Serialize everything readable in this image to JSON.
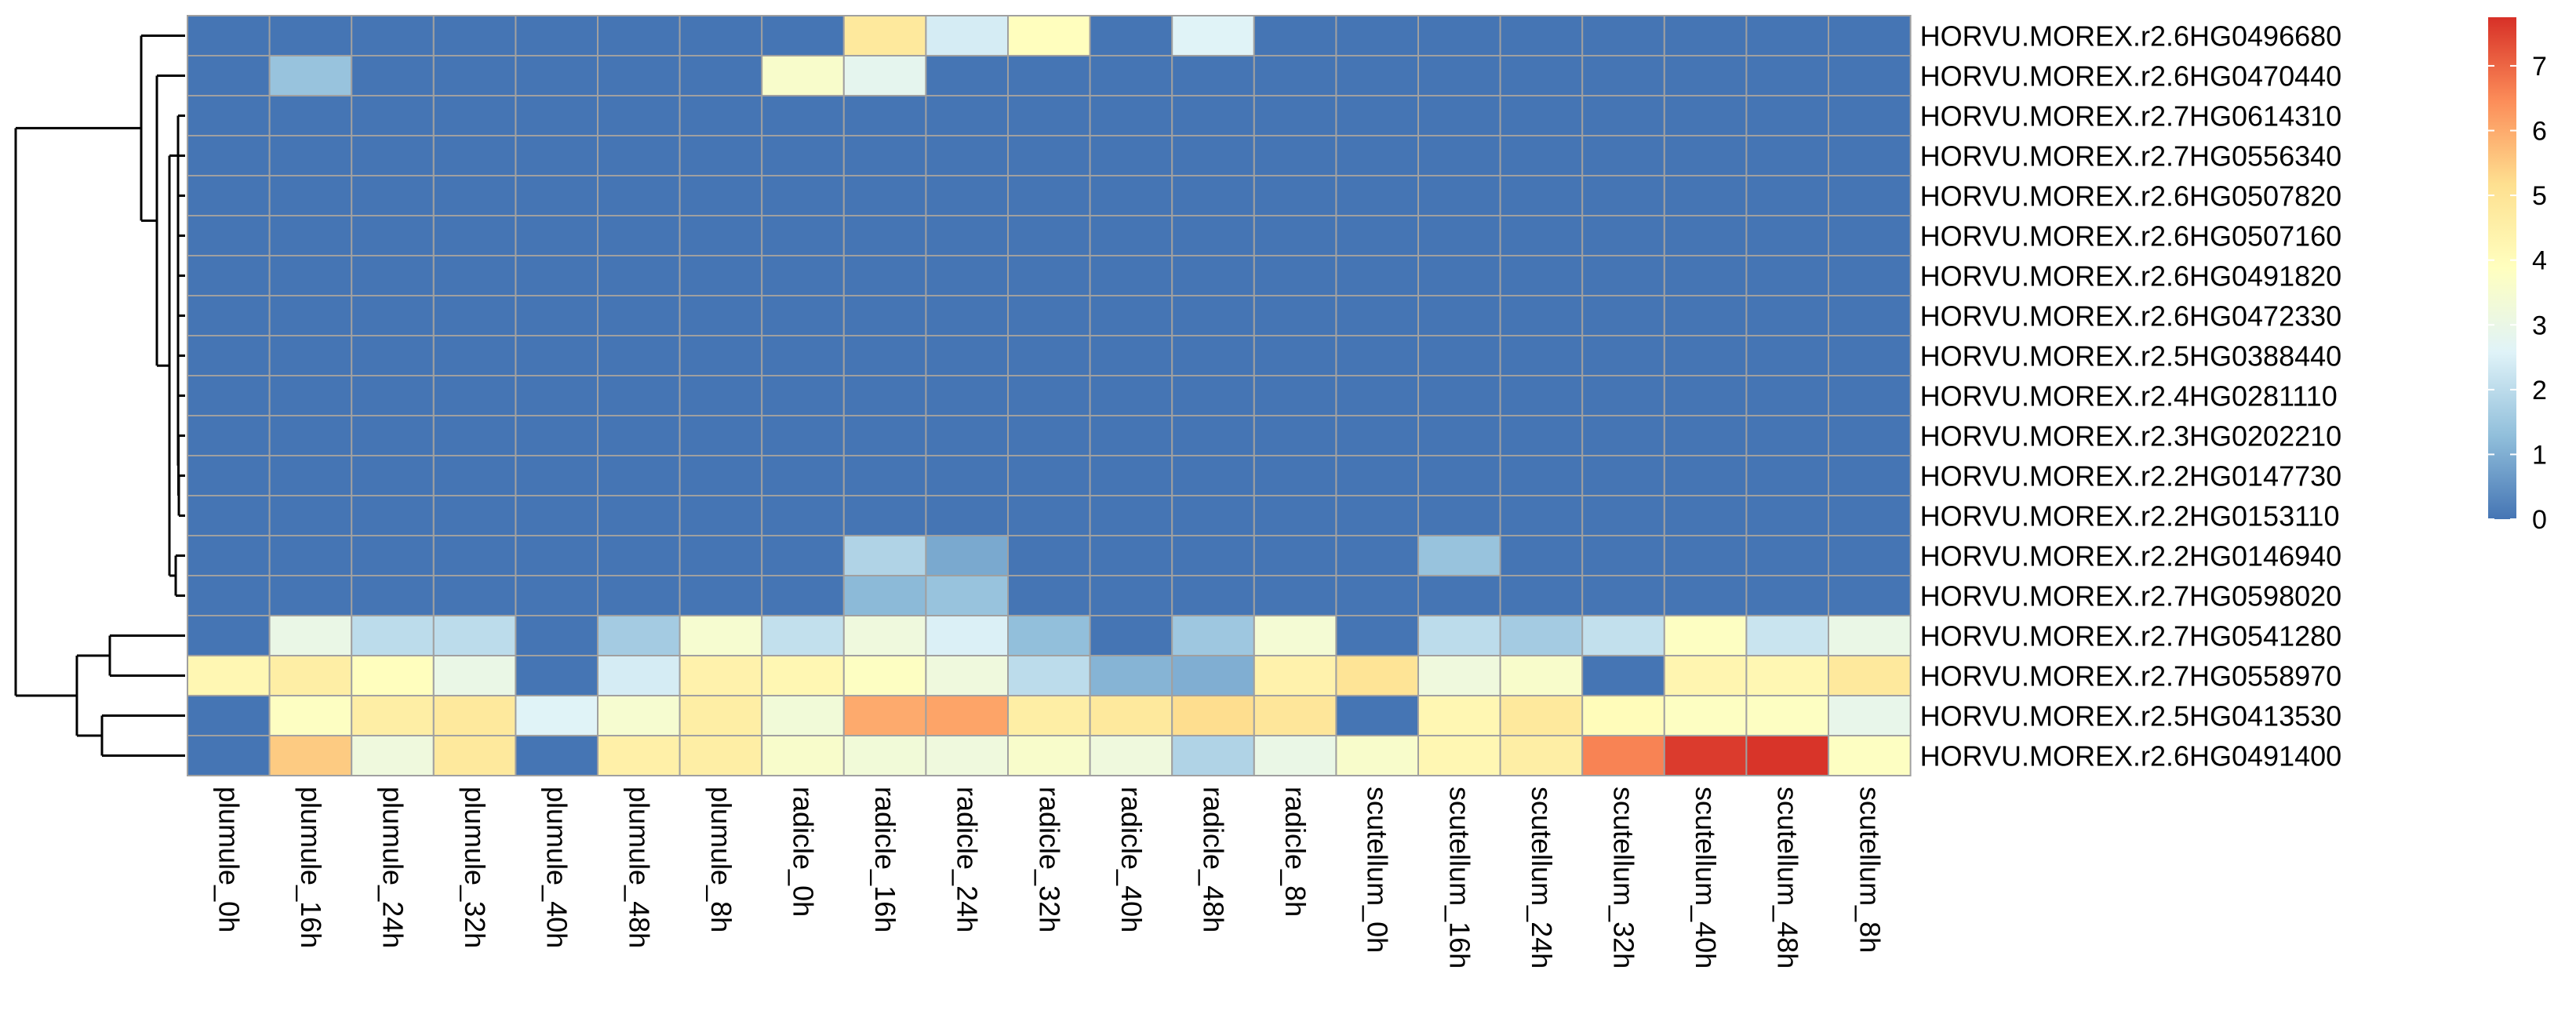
{
  "chart_data": {
    "type": "heatmap",
    "title": "",
    "xlabel": "",
    "ylabel": "",
    "columns": [
      "plumule_0h",
      "plumule_16h",
      "plumule_24h",
      "plumule_32h",
      "plumule_40h",
      "plumule_48h",
      "plumule_8h",
      "radicle_0h",
      "radicle_16h",
      "radicle_24h",
      "radicle_32h",
      "radicle_40h",
      "radicle_48h",
      "radicle_8h",
      "scutellum_0h",
      "scutellum_16h",
      "scutellum_24h",
      "scutellum_32h",
      "scutellum_40h",
      "scutellum_48h",
      "scutellum_8h"
    ],
    "rows": [
      {
        "name": "HORVU.MOREX.r2.6HG0496680",
        "values": [
          0,
          0,
          0,
          0,
          0,
          0,
          0,
          0,
          4.8,
          2.4,
          3.9,
          0,
          2.6,
          0,
          0,
          0,
          0,
          0,
          0,
          0,
          0
        ]
      },
      {
        "name": "HORVU.MOREX.r2.6HG0470440",
        "values": [
          0,
          1.4,
          0,
          0,
          0,
          0,
          0,
          3.6,
          2.8,
          0,
          0,
          0,
          0,
          0,
          0,
          0,
          0,
          0,
          0,
          0,
          0
        ]
      },
      {
        "name": "HORVU.MOREX.r2.7HG0614310",
        "values": [
          0,
          0,
          0,
          0,
          0,
          0,
          0,
          0,
          0,
          0,
          0,
          0,
          0,
          0,
          0,
          0,
          0,
          0,
          0,
          0,
          0
        ]
      },
      {
        "name": "HORVU.MOREX.r2.7HG0556340",
        "values": [
          0,
          0,
          0,
          0,
          0,
          0,
          0,
          0,
          0,
          0,
          0,
          0,
          0,
          0,
          0,
          0,
          0,
          0,
          0,
          0,
          0
        ]
      },
      {
        "name": "HORVU.MOREX.r2.6HG0507820",
        "values": [
          0,
          0,
          0,
          0,
          0,
          0,
          0,
          0,
          0,
          0,
          0,
          0,
          0,
          0,
          0,
          0,
          0,
          0,
          0,
          0,
          0
        ]
      },
      {
        "name": "HORVU.MOREX.r2.6HG0507160",
        "values": [
          0,
          0,
          0,
          0,
          0,
          0,
          0,
          0,
          0,
          0,
          0,
          0,
          0,
          0,
          0,
          0,
          0,
          0,
          0,
          0,
          0
        ]
      },
      {
        "name": "HORVU.MOREX.r2.6HG0491820",
        "values": [
          0,
          0,
          0,
          0,
          0,
          0,
          0,
          0,
          0,
          0,
          0,
          0,
          0,
          0,
          0,
          0,
          0,
          0,
          0,
          0,
          0
        ]
      },
      {
        "name": "HORVU.MOREX.r2.6HG0472330",
        "values": [
          0,
          0,
          0,
          0,
          0,
          0,
          0,
          0,
          0,
          0,
          0,
          0,
          0,
          0,
          0,
          0,
          0,
          0,
          0,
          0,
          0
        ]
      },
      {
        "name": "HORVU.MOREX.r2.5HG0388440",
        "values": [
          0,
          0,
          0,
          0,
          0,
          0,
          0,
          0,
          0,
          0,
          0,
          0,
          0,
          0,
          0,
          0,
          0,
          0,
          0,
          0,
          0
        ]
      },
      {
        "name": "HORVU.MOREX.r2.4HG0281110",
        "values": [
          0,
          0,
          0,
          0,
          0,
          0,
          0,
          0,
          0,
          0,
          0,
          0,
          0,
          0,
          0,
          0,
          0,
          0,
          0,
          0,
          0
        ]
      },
      {
        "name": "HORVU.MOREX.r2.3HG0202210",
        "values": [
          0,
          0,
          0,
          0,
          0,
          0,
          0,
          0,
          0,
          0,
          0,
          0,
          0,
          0,
          0,
          0,
          0,
          0,
          0,
          0,
          0
        ]
      },
      {
        "name": "HORVU.MOREX.r2.2HG0147730",
        "values": [
          0,
          0,
          0,
          0,
          0,
          0,
          0,
          0,
          0,
          0,
          0,
          0,
          0,
          0,
          0,
          0,
          0,
          0,
          0,
          0,
          0
        ]
      },
      {
        "name": "HORVU.MOREX.r2.2HG0153110",
        "values": [
          0,
          0,
          0,
          0,
          0,
          0,
          0,
          0,
          0,
          0,
          0,
          0,
          0,
          0,
          0,
          0,
          0,
          0,
          0,
          0,
          0
        ]
      },
      {
        "name": "HORVU.MOREX.r2.2HG0146940",
        "values": [
          0,
          0,
          0,
          0,
          0,
          0,
          0,
          0,
          1.8,
          0.9,
          0,
          0,
          0,
          0,
          0,
          1.4,
          0,
          0,
          0,
          0,
          0
        ]
      },
      {
        "name": "HORVU.MOREX.r2.7HG0598020",
        "values": [
          0,
          0,
          0,
          0,
          0,
          0,
          0,
          0,
          1.2,
          1.4,
          0,
          0,
          0,
          0,
          0,
          0,
          0,
          0,
          0,
          0,
          0
        ]
      },
      {
        "name": "HORVU.MOREX.r2.7HG0541280",
        "values": [
          0,
          3.0,
          2.0,
          2.0,
          0,
          1.6,
          3.5,
          2.1,
          3.2,
          2.5,
          1.3,
          0,
          1.5,
          3.4,
          0,
          2.0,
          1.6,
          2.1,
          3.8,
          2.2,
          3.0
        ]
      },
      {
        "name": "HORVU.MOREX.r2.7HG0558970",
        "values": [
          4.2,
          4.6,
          3.9,
          3.0,
          0,
          2.4,
          4.4,
          4.2,
          3.8,
          3.2,
          2.0,
          1.1,
          1.0,
          4.4,
          5.0,
          3.2,
          3.6,
          0,
          4.3,
          4.2,
          4.8
        ]
      },
      {
        "name": "HORVU.MOREX.r2.5HG0413530",
        "values": [
          0,
          3.8,
          4.6,
          4.8,
          2.6,
          3.5,
          4.6,
          3.3,
          6.0,
          6.1,
          4.6,
          4.8,
          5.2,
          4.9,
          0,
          4.2,
          4.8,
          4.0,
          3.8,
          3.8,
          2.9
        ]
      },
      {
        "name": "HORVU.MOREX.r2.6HG0491400",
        "values": [
          0,
          5.5,
          3.2,
          4.8,
          0,
          4.5,
          4.6,
          3.6,
          3.3,
          3.2,
          3.6,
          3.2,
          1.8,
          3.0,
          3.6,
          4.2,
          4.6,
          6.6,
          7.6,
          7.7,
          3.8
        ]
      }
    ],
    "color_scale": {
      "min": 0,
      "max": 7.75,
      "stops": [
        "#4575B4",
        "#91BFDB",
        "#E0F3F8",
        "#FFFFBF",
        "#FEE090",
        "#FC8D59",
        "#D73027"
      ]
    },
    "legend": {
      "position": "right",
      "ticks": [
        0,
        1,
        2,
        3,
        4,
        5,
        6,
        7
      ]
    },
    "dendrogram": "rows",
    "cell_border_color": "#A0A0A0"
  }
}
